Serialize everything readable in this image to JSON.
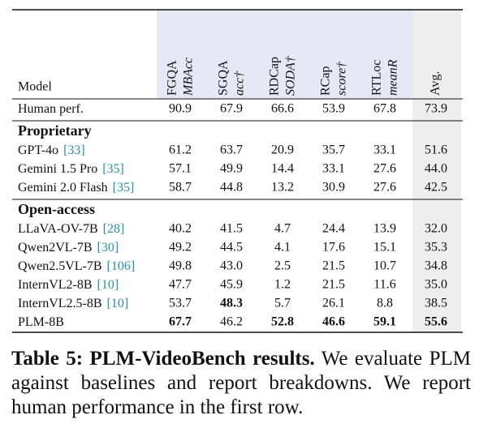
{
  "table": {
    "model_header": "Model",
    "columns": [
      {
        "name": "FGQA",
        "metric": "MBAcc"
      },
      {
        "name": "SGQA",
        "metric": "acc†"
      },
      {
        "name": "RDCap",
        "metric": "SODA†"
      },
      {
        "name": "RCap",
        "metric": "score†"
      },
      {
        "name": "RTLoc",
        "metric": "meanR"
      },
      {
        "name": "Avg."
      }
    ],
    "rows": [
      {
        "model": "Human perf.",
        "values": [
          "90.9",
          "67.9",
          "66.6",
          "53.9",
          "67.8",
          "73.9"
        ]
      },
      {
        "section": "Proprietary"
      },
      {
        "model": "GPT-4o",
        "cite": "[33]",
        "values": [
          "61.2",
          "63.7",
          "20.9",
          "35.7",
          "33.1",
          "51.6"
        ]
      },
      {
        "model": "Gemini 1.5 Pro",
        "cite": "[35]",
        "values": [
          "57.1",
          "49.9",
          "14.4",
          "33.1",
          "27.6",
          "44.0"
        ]
      },
      {
        "model": "Gemini 2.0 Flash",
        "cite": "[35]",
        "values": [
          "58.7",
          "44.8",
          "13.2",
          "30.9",
          "27.6",
          "42.5"
        ]
      },
      {
        "section": "Open-access"
      },
      {
        "model": "LLaVA-OV-7B",
        "cite": "[28]",
        "values": [
          "40.2",
          "41.5",
          "4.7",
          "24.4",
          "13.9",
          "32.0"
        ]
      },
      {
        "model": "Qwen2VL-7B",
        "cite": "[30]",
        "values": [
          "49.2",
          "44.5",
          "4.1",
          "17.6",
          "15.1",
          "35.3"
        ]
      },
      {
        "model": "Qwen2.5VL-7B",
        "cite": "[106]",
        "values": [
          "49.8",
          "43.0",
          "2.5",
          "21.5",
          "10.7",
          "34.8"
        ]
      },
      {
        "model": "InternVL2-8B",
        "cite": "[10]",
        "values": [
          "47.7",
          "45.9",
          "1.2",
          "21.5",
          "11.6",
          "35.0"
        ]
      },
      {
        "model": "InternVL2.5-8B",
        "cite": "[10]",
        "values": [
          "53.7",
          "48.3",
          "5.7",
          "26.1",
          "8.8",
          "38.5"
        ],
        "bold": [
          1
        ]
      },
      {
        "model": "PLM-8B",
        "values": [
          "67.7",
          "46.2",
          "52.8",
          "46.6",
          "59.1",
          "55.6"
        ],
        "bold": [
          0,
          2,
          3,
          4,
          5
        ]
      }
    ]
  },
  "caption": {
    "label": "Table 5:",
    "title": "PLM-VideoBench results.",
    "text": "We evaluate PLM against baselines and report breakdowns. We report human performance in the first row."
  }
}
